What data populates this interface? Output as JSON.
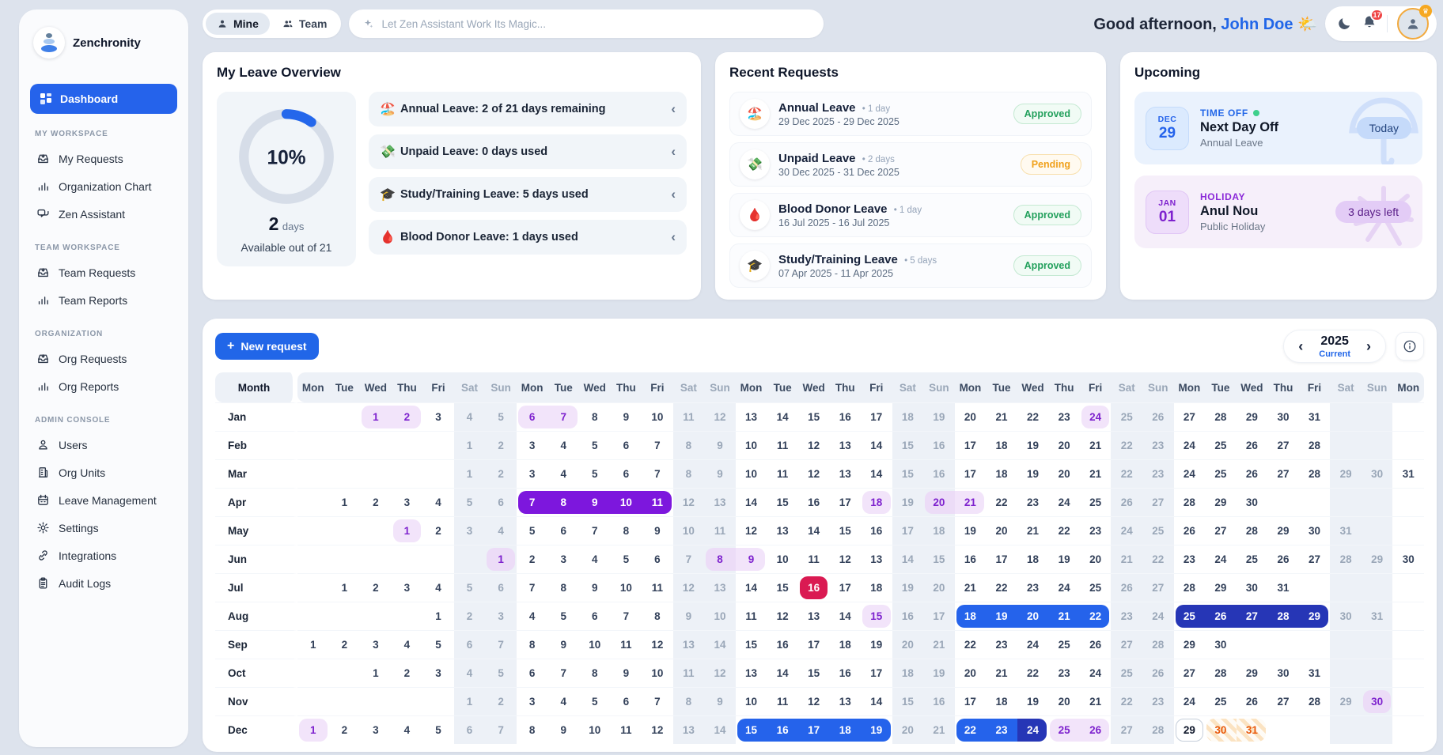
{
  "brand": {
    "name": "Zenchronity"
  },
  "topbar": {
    "tabs": [
      {
        "label": "Mine",
        "active": true
      },
      {
        "label": "Team",
        "active": false
      }
    ],
    "search_placeholder": "Let Zen Assistant Work Its Magic...",
    "greeting_prefix": "Good afternoon, ",
    "greeting_name": "John Doe",
    "greeting_emoji": "🌤️",
    "notification_count": "17"
  },
  "sidebar": {
    "dashboard_label": "Dashboard",
    "sections": [
      {
        "title": "MY WORKSPACE",
        "items": [
          {
            "label": "My Requests",
            "icon": "inbox"
          },
          {
            "label": "Organization Chart",
            "icon": "chart"
          },
          {
            "label": "Zen Assistant",
            "icon": "chat"
          }
        ]
      },
      {
        "title": "TEAM WORKSPACE",
        "items": [
          {
            "label": "Team Requests",
            "icon": "inbox"
          },
          {
            "label": "Team Reports",
            "icon": "chart"
          }
        ]
      },
      {
        "title": "ORGANIZATION",
        "items": [
          {
            "label": "Org Requests",
            "icon": "inbox"
          },
          {
            "label": "Org Reports",
            "icon": "chart"
          }
        ]
      },
      {
        "title": "ADMIN CONSOLE",
        "items": [
          {
            "label": "Users",
            "icon": "user"
          },
          {
            "label": "Org Units",
            "icon": "building"
          },
          {
            "label": "Leave Management",
            "icon": "calendar"
          },
          {
            "label": "Settings",
            "icon": "gear"
          },
          {
            "label": "Integrations",
            "icon": "link"
          },
          {
            "label": "Audit Logs",
            "icon": "clipboard"
          }
        ]
      }
    ]
  },
  "leave_overview": {
    "title": "My Leave Overview",
    "percent_label": "10%",
    "donut_percent": 10,
    "available_value": "2",
    "available_unit": "days",
    "available_caption": "Available out of 21",
    "rows": [
      {
        "emoji": "🏖️",
        "icon": "beach-umbrella",
        "text": "Annual Leave: 2 of 21 days remaining"
      },
      {
        "emoji": "💸",
        "icon": "money-with-wings",
        "text": "Unpaid Leave: 0 days used"
      },
      {
        "emoji": "🎓",
        "icon": "graduation-cap",
        "text": "Study/Training Leave: 5 days used"
      },
      {
        "emoji": "🩸",
        "icon": "blood-drop",
        "text": "Blood Donor Leave: 1 days used"
      }
    ]
  },
  "recent_requests": {
    "title": "Recent Requests",
    "items": [
      {
        "emoji": "🏖️",
        "title": "Annual Leave",
        "duration": "• 1 day",
        "range": "29 Dec 2025 - 29 Dec 2025",
        "status": "Approved",
        "status_type": "approved"
      },
      {
        "emoji": "💸",
        "title": "Unpaid Leave",
        "duration": "• 2 days",
        "range": "30 Dec 2025 - 31 Dec 2025",
        "status": "Pending",
        "status_type": "pending"
      },
      {
        "emoji": "🩸",
        "title": "Blood Donor Leave",
        "duration": "• 1 day",
        "range": "16 Jul 2025 - 16 Jul 2025",
        "status": "Approved",
        "status_type": "approved"
      },
      {
        "emoji": "🎓",
        "title": "Study/Training Leave",
        "duration": "• 5 days",
        "range": "07 Apr 2025 - 11 Apr 2025",
        "status": "Approved",
        "status_type": "approved"
      }
    ]
  },
  "upcoming": {
    "title": "Upcoming",
    "items": [
      {
        "month": "DEC",
        "day": "29",
        "kind": "TIME OFF",
        "has_dot": true,
        "title": "Next Day Off",
        "subtitle": "Annual Leave",
        "badge": "Today",
        "theme": "blue"
      },
      {
        "month": "JAN",
        "day": "01",
        "kind": "HOLIDAY",
        "has_dot": false,
        "title": "Anul Nou",
        "subtitle": "Public Holiday",
        "badge": "3 days left",
        "theme": "purple"
      }
    ]
  },
  "calendar": {
    "new_request_label": "New request",
    "year": "2025",
    "year_caption": "Current",
    "month_header": "Month",
    "day_headers": [
      "Mon",
      "Tue",
      "Wed",
      "Thu",
      "Fri",
      "Sat",
      "Sun",
      "Mon",
      "Tue",
      "Wed",
      "Thu",
      "Fri",
      "Sat",
      "Sun",
      "Mon",
      "Tue",
      "Wed",
      "Thu",
      "Fri",
      "Sat",
      "Sun",
      "Mon",
      "Tue",
      "Wed",
      "Thu",
      "Fri",
      "Sat",
      "Sun",
      "Mon",
      "Tue",
      "Wed",
      "Thu",
      "Fri",
      "Sat",
      "Sun",
      "Mon"
    ],
    "months": [
      {
        "name": "Jan",
        "start": 3,
        "days": 31,
        "marks": {
          "1": "lav",
          "2": "lav",
          "6": "lav",
          "7": "lav",
          "24": "lav"
        }
      },
      {
        "name": "Feb",
        "start": 6,
        "days": 28,
        "marks": {}
      },
      {
        "name": "Mar",
        "start": 6,
        "days": 31,
        "marks": {}
      },
      {
        "name": "Apr",
        "start": 2,
        "days": 30,
        "marks": {
          "7": "purple",
          "8": "purple",
          "9": "purple",
          "10": "purple",
          "11": "purple",
          "18": "lav",
          "20": "lav",
          "21": "lav"
        }
      },
      {
        "name": "May",
        "start": 4,
        "days": 31,
        "marks": {
          "1": "lav"
        }
      },
      {
        "name": "Jun",
        "start": 7,
        "days": 30,
        "marks": {
          "1": "lav",
          "8": "lav",
          "9": "lav"
        }
      },
      {
        "name": "Jul",
        "start": 2,
        "days": 31,
        "marks": {
          "16": "red"
        }
      },
      {
        "name": "Aug",
        "start": 5,
        "days": 31,
        "marks": {
          "15": "lav",
          "18": "blue",
          "19": "blue",
          "20": "blue",
          "21": "blue",
          "22": "blue",
          "25": "blued",
          "26": "blued",
          "27": "blued",
          "28": "blued",
          "29": "blued"
        }
      },
      {
        "name": "Sep",
        "start": 1,
        "days": 30,
        "marks": {}
      },
      {
        "name": "Oct",
        "start": 3,
        "days": 31,
        "marks": {}
      },
      {
        "name": "Nov",
        "start": 6,
        "days": 30,
        "marks": {
          "30": "lav"
        }
      },
      {
        "name": "Dec",
        "start": 1,
        "days": 31,
        "marks": {
          "1": "lav",
          "15": "blue",
          "16": "blue",
          "17": "blue",
          "18": "blue",
          "19": "blue",
          "22": "blue",
          "23": "blue",
          "24": "blued",
          "25": "lav",
          "26": "lav",
          "29": "today",
          "30": "hatch",
          "31": "hatch"
        }
      }
    ]
  },
  "colors": {
    "accent_blue": "#2563eb",
    "pill_purple": "#7d17dd",
    "pill_red": "#da1a52",
    "pill_blue_dark": "#2636b6",
    "lavender_bg": "#f2e4fa",
    "approved_green": "#22a05c",
    "pending_amber": "#f0a11c",
    "hatch_orange": "#e8590c"
  }
}
